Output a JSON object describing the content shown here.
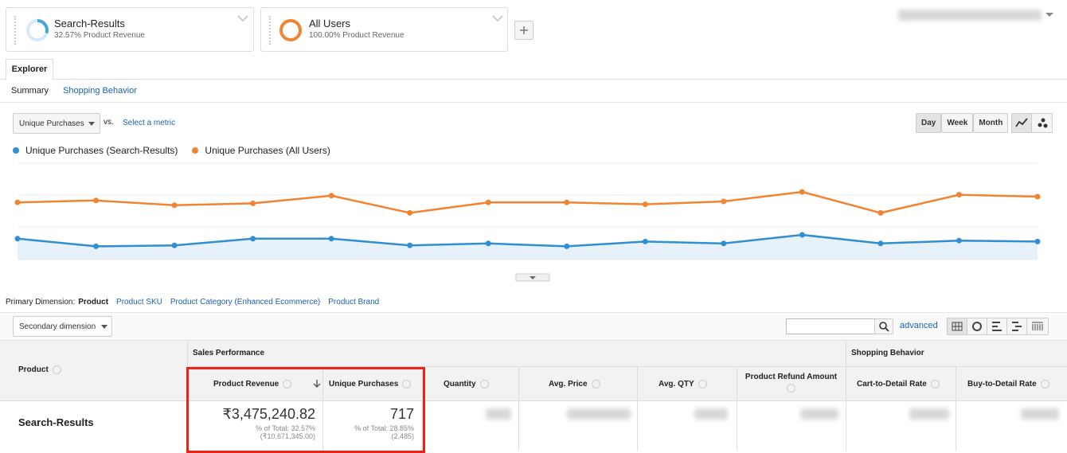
{
  "segments": [
    {
      "name": "Search-Results",
      "detail": "32.57% Product Revenue"
    },
    {
      "name": "All Users",
      "detail": "100.00% Product Revenue"
    }
  ],
  "tab": "Explorer",
  "subtabs": [
    "Summary",
    "Shopping Behavior"
  ],
  "metric_select": "Unique Purchases",
  "vs": "vs.",
  "select_metric": "Select a metric",
  "periods": [
    "Day",
    "Week",
    "Month"
  ],
  "chart_data": {
    "type": "line",
    "ylim": [
      0,
      100
    ],
    "series": [
      {
        "name": "Unique Purchases (Search-Results)",
        "color": "#2f8fd0",
        "values": [
          21,
          13,
          14,
          21,
          21,
          14,
          16,
          13,
          18,
          16,
          25,
          16,
          19,
          18
        ]
      },
      {
        "name": "Unique Purchases (All Users)",
        "color": "#ef8431",
        "values": [
          59,
          61,
          56,
          58,
          66,
          48,
          59,
          59,
          57,
          60,
          70,
          48,
          67,
          65
        ]
      }
    ]
  },
  "primary_dimension": {
    "label": "Primary Dimension:",
    "options": [
      "Product",
      "Product SKU",
      "Product Category (Enhanced Ecommerce)",
      "Product Brand"
    ]
  },
  "secondary_dimension": "Secondary dimension",
  "advanced": "advanced",
  "table": {
    "groups": [
      "Sales Performance",
      "Shopping Behavior"
    ],
    "columns": [
      "Product",
      "Product Revenue",
      "Unique Purchases",
      "Quantity",
      "Avg. Price",
      "Avg. QTY",
      "Product Refund Amount",
      "Cart-to-Detail Rate",
      "Buy-to-Detail Rate"
    ],
    "row": {
      "product": "Search-Results",
      "revenue": {
        "value": "₹3,475,240.82",
        "share": "% of Total: 32.57%",
        "total": "(₹10,671,345.00)"
      },
      "purchases": {
        "value": "717",
        "share": "% of Total: 28.85%",
        "total": "(2,485)"
      }
    }
  }
}
